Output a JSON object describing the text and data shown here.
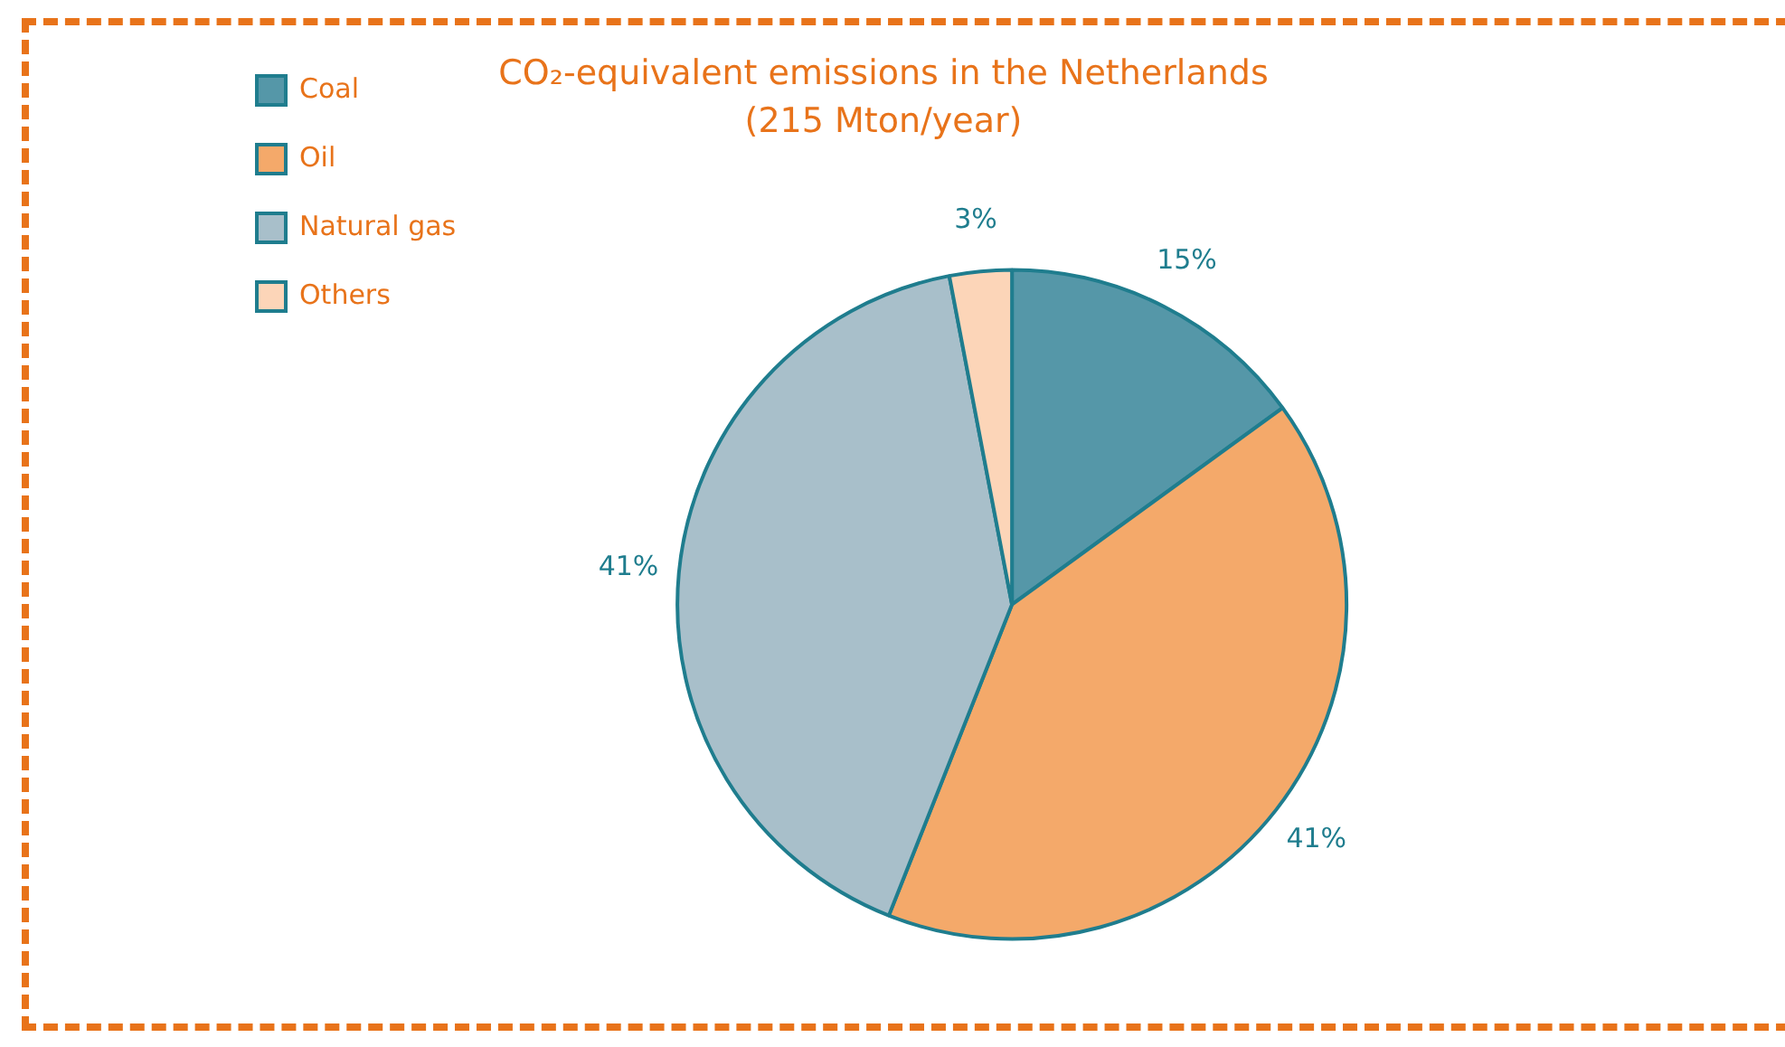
{
  "chart_data": {
    "type": "pie",
    "title": "CO₂-equivalent emissions in the Netherlands",
    "subtitle": "(215 Mton/year)",
    "categories": [
      "Coal",
      "Oil",
      "Natural gas",
      "Others"
    ],
    "values": [
      15,
      41,
      41,
      3
    ],
    "colors": [
      "#5597a8",
      "#f4a96a",
      "#a8bfca",
      "#fcd5b8"
    ],
    "value_labels": [
      "15%",
      "41%",
      "41%",
      "3%"
    ],
    "legend": "left"
  }
}
